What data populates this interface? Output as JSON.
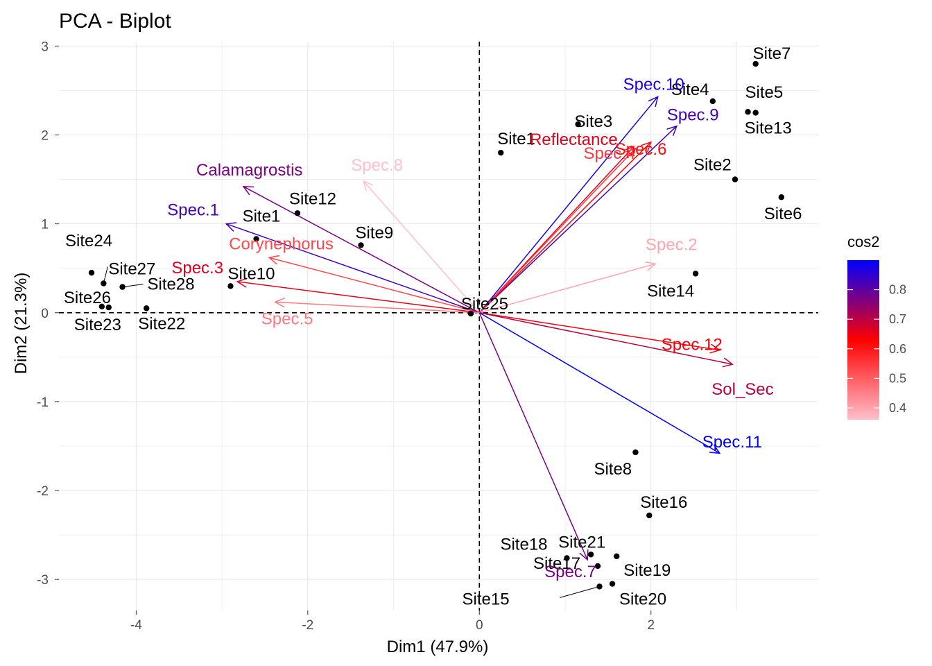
{
  "chart_data": {
    "type": "scatter",
    "title": "PCA - Biplot",
    "xlabel": "Dim1 (47.9%)",
    "ylabel": "Dim2 (21.3%)",
    "xlim": [
      -4.9,
      3.95
    ],
    "ylim": [
      -3.35,
      3.05
    ],
    "x_ticks": [
      -4,
      -2,
      0,
      2
    ],
    "y_ticks": [
      -3,
      -2,
      -1,
      0,
      1,
      2,
      3
    ],
    "grid": true,
    "reference_lines": [
      0,
      0
    ],
    "legend": {
      "title": "cos2",
      "position": "right",
      "ticks": [
        0.4,
        0.5,
        0.6,
        0.7,
        0.8
      ],
      "range": [
        0.36,
        0.9
      ],
      "colors": [
        "#ffc0cb",
        "#ff0000",
        "#0000ff"
      ]
    },
    "individuals": [
      {
        "label": "Site1",
        "x": -2.6,
        "y": 0.83
      },
      {
        "label": "Site1",
        "x": 0.25,
        "y": 1.8
      },
      {
        "label": "Site2",
        "x": 2.98,
        "y": 1.5
      },
      {
        "label": "Site3",
        "x": 1.15,
        "y": 2.12
      },
      {
        "label": "Site4",
        "x": 2.72,
        "y": 2.38
      },
      {
        "label": "Site5",
        "x": 3.13,
        "y": 2.26
      },
      {
        "label": "Site6",
        "x": 3.52,
        "y": 1.3
      },
      {
        "label": "Site7",
        "x": 3.22,
        "y": 2.8
      },
      {
        "label": "Site8",
        "x": 1.82,
        "y": -1.57
      },
      {
        "label": "Site9",
        "x": -1.38,
        "y": 0.76
      },
      {
        "label": "Site10",
        "x": -2.9,
        "y": 0.3
      },
      {
        "label": "Site12",
        "x": -2.12,
        "y": 1.12
      },
      {
        "label": "Site13",
        "x": 3.22,
        "y": 2.25
      },
      {
        "label": "Site14",
        "x": 2.52,
        "y": 0.44
      },
      {
        "label": "Site15",
        "x": 1.4,
        "y": -3.08
      },
      {
        "label": "Site16",
        "x": 1.98,
        "y": -2.28
      },
      {
        "label": "Site17",
        "x": 1.38,
        "y": -2.85
      },
      {
        "label": "Site18",
        "x": 1.02,
        "y": -2.76
      },
      {
        "label": "Site19",
        "x": 1.6,
        "y": -2.74
      },
      {
        "label": "Site20",
        "x": 1.55,
        "y": -3.05
      },
      {
        "label": "Site21",
        "x": 1.3,
        "y": -2.72
      },
      {
        "label": "Site22",
        "x": -3.88,
        "y": 0.05
      },
      {
        "label": "Site23",
        "x": -4.32,
        "y": 0.06
      },
      {
        "label": "Site24",
        "x": -4.52,
        "y": 0.45
      },
      {
        "label": "Site25",
        "x": -0.1,
        "y": -0.01
      },
      {
        "label": "Site26",
        "x": -4.4,
        "y": 0.07
      },
      {
        "label": "Site27",
        "x": -4.38,
        "y": 0.33
      },
      {
        "label": "Site28",
        "x": -4.16,
        "y": 0.29
      }
    ],
    "variables": [
      {
        "label": "Spec.10",
        "x": 2.08,
        "y": 2.43,
        "cos2": 0.87
      },
      {
        "label": "Spec.9",
        "x": 2.3,
        "y": 2.1,
        "cos2": 0.83
      },
      {
        "label": "Reflectance",
        "x": 1.8,
        "y": 1.87,
        "cos2": 0.66
      },
      {
        "label": "Spec.6",
        "x": 2.0,
        "y": 1.92,
        "cos2": 0.62
      },
      {
        "label": "Spec.4",
        "x": 1.82,
        "y": 1.85,
        "cos2": 0.55
      },
      {
        "label": "Spec.2",
        "x": 2.05,
        "y": 0.55,
        "cos2": 0.4
      },
      {
        "label": "Spec.12",
        "x": 2.8,
        "y": -0.42,
        "cos2": 0.64
      },
      {
        "label": "Sol_Sec",
        "x": 2.95,
        "y": -0.58,
        "cos2": 0.7
      },
      {
        "label": "Spec.11",
        "x": 2.8,
        "y": -1.58,
        "cos2": 0.9
      },
      {
        "label": "Spec.7",
        "x": 1.26,
        "y": -2.78,
        "cos2": 0.77
      },
      {
        "label": "Spec.8",
        "x": -1.35,
        "y": 1.48,
        "cos2": 0.36
      },
      {
        "label": "Calamagrostis",
        "x": -2.75,
        "y": 1.42,
        "cos2": 0.77
      },
      {
        "label": "Spec.1",
        "x": -2.95,
        "y": 1.0,
        "cos2": 0.83
      },
      {
        "label": "Corynephorus",
        "x": -2.45,
        "y": 0.62,
        "cos2": 0.53
      },
      {
        "label": "Spec.3",
        "x": -2.82,
        "y": 0.35,
        "cos2": 0.66
      },
      {
        "label": "Spec.5",
        "x": -2.38,
        "y": 0.12,
        "cos2": 0.46
      }
    ]
  }
}
